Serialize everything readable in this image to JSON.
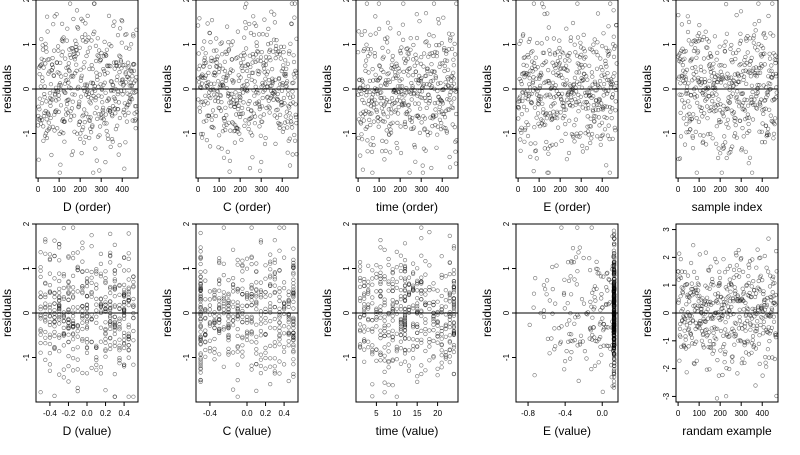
{
  "chart_data": [
    {
      "type": "scatter",
      "xlabel": "D (order)",
      "ylabel": "residuals",
      "xticks": [
        "0",
        "100",
        "200",
        "300",
        "400"
      ],
      "yticks": [
        "-1",
        "0",
        "1",
        "2"
      ],
      "xlim": [
        -10,
        475
      ],
      "ylim": [
        -2.0,
        2.0
      ],
      "hline": 0,
      "x_kind": "index",
      "n": 470,
      "seed": 11
    },
    {
      "type": "scatter",
      "xlabel": "C (order)",
      "ylabel": "residuals",
      "xticks": [
        "0",
        "100",
        "200",
        "300",
        "400"
      ],
      "yticks": [
        "-1",
        "0",
        "1",
        "2"
      ],
      "xlim": [
        -10,
        475
      ],
      "ylim": [
        -2.0,
        2.0
      ],
      "hline": 0,
      "x_kind": "index",
      "n": 470,
      "seed": 23
    },
    {
      "type": "scatter",
      "xlabel": "time (order)",
      "ylabel": "residuals",
      "xticks": [
        "0",
        "100",
        "200",
        "300",
        "400"
      ],
      "yticks": [
        "-1",
        "0",
        "1",
        "2"
      ],
      "xlim": [
        -10,
        475
      ],
      "ylim": [
        -2.0,
        2.0
      ],
      "hline": 0,
      "x_kind": "index",
      "n": 470,
      "seed": 37
    },
    {
      "type": "scatter",
      "xlabel": "E (order)",
      "ylabel": "residuals",
      "xticks": [
        "0",
        "100",
        "200",
        "300",
        "400"
      ],
      "yticks": [
        "-1",
        "0",
        "1",
        "2"
      ],
      "xlim": [
        -10,
        475
      ],
      "ylim": [
        -2.0,
        2.0
      ],
      "hline": 0,
      "x_kind": "index",
      "n": 470,
      "seed": 41
    },
    {
      "type": "scatter",
      "xlabel": "sample index",
      "ylabel": "residuals",
      "xticks": [
        "0",
        "100",
        "200",
        "300",
        "400"
      ],
      "yticks": [
        "-1",
        "0",
        "1",
        "2"
      ],
      "xlim": [
        -10,
        475
      ],
      "ylim": [
        -2.0,
        2.0
      ],
      "hline": 0,
      "x_kind": "index",
      "n": 470,
      "seed": 53
    },
    {
      "type": "scatter",
      "xlabel": "D (value)",
      "ylabel": "residuals",
      "xticks": [
        "-0.4",
        "-0.2",
        "0.0",
        "0.2",
        "0.4"
      ],
      "yticks": [
        "-1",
        "0",
        "1",
        "2"
      ],
      "xlim": [
        -0.55,
        0.55
      ],
      "ylim": [
        -2.0,
        2.0
      ],
      "hline": 0,
      "x_kind": "levels",
      "x_levels": [
        -0.5,
        -0.45,
        -0.4,
        -0.35,
        -0.3,
        -0.25,
        -0.2,
        -0.15,
        -0.1,
        -0.05,
        0.0,
        0.05,
        0.1,
        0.15,
        0.2,
        0.25,
        0.3,
        0.35,
        0.4,
        0.45,
        0.5
      ],
      "n": 470,
      "seed": 61
    },
    {
      "type": "scatter",
      "xlabel": "C (value)",
      "ylabel": "residuals",
      "xticks": [
        "-0.4",
        "0.0",
        "0.2",
        "0.4"
      ],
      "yticks": [
        "-1",
        "0",
        "1",
        "2"
      ],
      "xlim": [
        -0.55,
        0.55
      ],
      "ylim": [
        -2.0,
        2.0
      ],
      "hline": 0,
      "x_kind": "levels",
      "x_levels": [
        -0.5,
        -0.5,
        -0.5,
        -0.45,
        -0.4,
        -0.35,
        -0.3,
        -0.25,
        -0.2,
        -0.15,
        -0.1,
        -0.05,
        0.0,
        0.05,
        0.1,
        0.15,
        0.2,
        0.25,
        0.3,
        0.35,
        0.4,
        0.45,
        0.5,
        0.5,
        0.5
      ],
      "n": 470,
      "seed": 71
    },
    {
      "type": "scatter",
      "xlabel": "time (value)",
      "ylabel": "residuals",
      "xticks": [
        "5",
        "10",
        "15",
        "20"
      ],
      "yticks": [
        "-1",
        "0",
        "1",
        "2"
      ],
      "xlim": [
        0,
        25
      ],
      "ylim": [
        -2.0,
        2.0
      ],
      "hline": 0,
      "x_kind": "levels",
      "x_levels": [
        1,
        2,
        3,
        4,
        5,
        6,
        7,
        8,
        9,
        10,
        11,
        12,
        12,
        13,
        14,
        15,
        16,
        17,
        18,
        19,
        20,
        21,
        22,
        23,
        24,
        24
      ],
      "n": 470,
      "seed": 83
    },
    {
      "type": "scatter",
      "xlabel": "E (value)",
      "ylabel": "residuals",
      "xticks": [
        "-0.8",
        "-0.4",
        "0.0"
      ],
      "yticks": [
        "-1",
        "0",
        "1",
        "2"
      ],
      "xlim": [
        -0.93,
        0.17
      ],
      "ylim": [
        -2.0,
        2.0
      ],
      "hline": 0,
      "x_kind": "skewed",
      "x_max": 0.13,
      "x_min": -0.88,
      "n": 470,
      "seed": 97
    },
    {
      "type": "scatter",
      "xlabel": "randam example",
      "ylabel": "residuals",
      "xticks": [
        "0",
        "100",
        "200",
        "300",
        "400"
      ],
      "yticks": [
        "-3",
        "-2",
        "-1",
        "0",
        "1",
        "2",
        "3"
      ],
      "xlim": [
        -10,
        475
      ],
      "ylim": [
        -3.2,
        3.2
      ],
      "hline": 0,
      "x_kind": "index",
      "n": 470,
      "seed": 103
    }
  ]
}
